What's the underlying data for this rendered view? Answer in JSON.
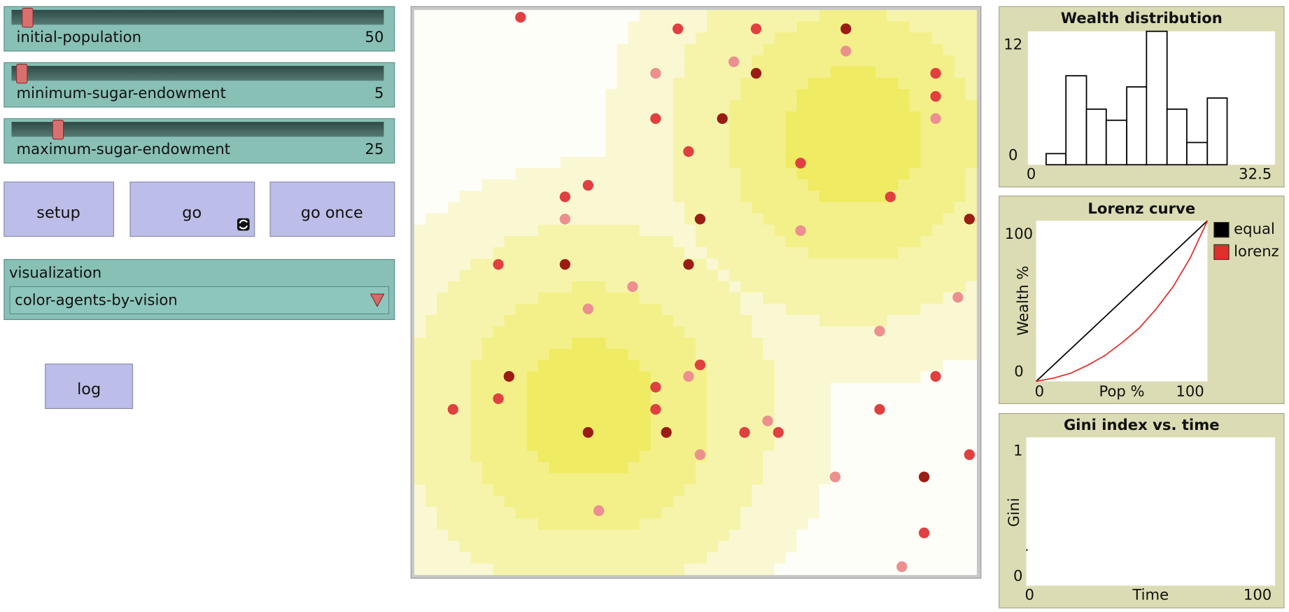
{
  "sliders": [
    {
      "label": "initial-population",
      "value": 50
    },
    {
      "label": "minimum-sugar-endowment",
      "value": 5
    },
    {
      "label": "maximum-sugar-endowment",
      "value": 25
    }
  ],
  "buttons": [
    "setup",
    "go",
    "go once"
  ],
  "chooser": {
    "label": "visualization",
    "value": "color-agents-by-vision"
  },
  "log_button": "log",
  "plots": [
    {
      "type": "histogram",
      "title": "Wealth distribution",
      "bins": [
        2.4,
        5.0,
        7.7,
        10.3,
        13.0,
        15.6,
        18.3,
        20.9,
        23.6,
        26.2
      ],
      "values": [
        1,
        8,
        5,
        4,
        7,
        12,
        5,
        2,
        6
      ],
      "color": "#ffffff",
      "xlim": [
        0,
        32.5
      ],
      "xticks": [
        0,
        32.5
      ],
      "ylim": [
        0,
        12
      ],
      "yticks": [
        0,
        12
      ]
    },
    {
      "type": "line",
      "title": "Lorenz curve",
      "x_label": "Pop %",
      "y_label": "Wealth %",
      "xlim": [
        0,
        100
      ],
      "xticks": [
        0,
        100
      ],
      "ylim": [
        0,
        100
      ],
      "yticks": [
        0,
        100
      ],
      "series": [
        {
          "name": "equal",
          "color": "#000000",
          "x": [
            0,
            100
          ],
          "values": [
            0,
            100
          ]
        },
        {
          "name": "lorenz",
          "color": "#e0302a",
          "x": [
            0,
            10,
            20,
            30,
            40,
            50,
            60,
            70,
            80,
            90,
            100
          ],
          "values": [
            0,
            2,
            5,
            10,
            16,
            24,
            33,
            45,
            59,
            77,
            100
          ]
        }
      ]
    },
    {
      "type": "line",
      "title": "Gini index vs. time",
      "x_label": "Time",
      "y_label": "Gini",
      "xlim": [
        0,
        100
      ],
      "xticks": [
        0,
        100
      ],
      "ylim": [
        0,
        1
      ],
      "yticks": [
        0,
        1
      ],
      "series": [
        {
          "color": "#000000",
          "x": [
            0
          ],
          "values": [
            0.24
          ]
        }
      ]
    }
  ]
}
